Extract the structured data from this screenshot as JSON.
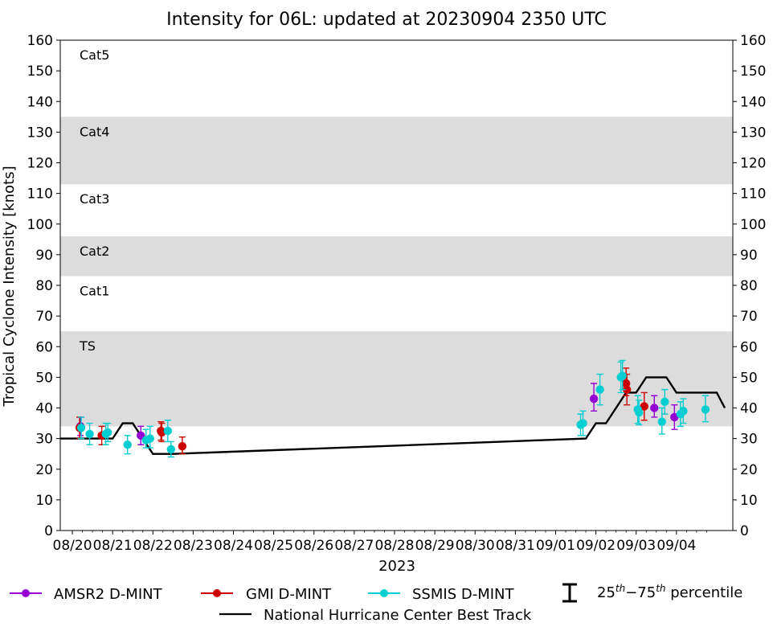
{
  "chart_data": {
    "type": "scatter",
    "title": "Intensity for 06L: updated at 20230904 2350 UTC",
    "xlabel": "2023",
    "ylabel": "Tropical Cyclone Intensity [knots]",
    "ylim": [
      0,
      160
    ],
    "yticks": [
      "0",
      "10",
      "20",
      "30",
      "40",
      "50",
      "60",
      "70",
      "80",
      "90",
      "100",
      "110",
      "120",
      "130",
      "140",
      "150",
      "160"
    ],
    "xticks": [
      "08/20",
      "08/21",
      "08/22",
      "08/23",
      "08/24",
      "08/25",
      "08/26",
      "08/27",
      "08/28",
      "08/29",
      "08/30",
      "08/31",
      "09/01",
      "09/02",
      "09/03",
      "09/04"
    ],
    "x_note_days_from_0820": [
      0,
      1,
      2,
      3,
      4,
      5,
      6,
      7,
      8,
      9,
      10,
      11,
      12,
      13,
      14,
      15
    ],
    "xlim_days": [
      -0.3,
      16.4
    ],
    "category_bands": [
      {
        "label": "Cat5",
        "from": 135,
        "to": 160,
        "shaded": false
      },
      {
        "label": "Cat4",
        "from": 113,
        "to": 135,
        "shaded": true
      },
      {
        "label": "Cat3",
        "from": 96,
        "to": 113,
        "shaded": false
      },
      {
        "label": "Cat2",
        "from": 83,
        "to": 96,
        "shaded": true
      },
      {
        "label": "Cat1",
        "from": 64,
        "to": 83,
        "shaded": false
      },
      {
        "label": "TS",
        "from": 34,
        "to": 65,
        "shaded": true
      }
    ],
    "colors": {
      "amsr2": "#9400d3",
      "gmi": "#cc0000",
      "ssmis": "#00ced1",
      "best_track": "#000000",
      "band": "#dcdcdc"
    },
    "series": [
      {
        "name": "AMSR2 D-MINT",
        "color": "#9400d3",
        "points": [
          {
            "x": "08/20 06",
            "y": 34,
            "lo": 31,
            "hi": 37
          },
          {
            "x": "08/21 18",
            "y": 31,
            "lo": 28,
            "hi": 34
          },
          {
            "x": "09/02 18",
            "y": 43,
            "lo": 39,
            "hi": 48
          },
          {
            "x": "09/03 06",
            "y": 40,
            "lo": 37,
            "hi": 44
          },
          {
            "x": "09/03 18",
            "y": 37,
            "lo": 33,
            "hi": 41
          }
        ]
      },
      {
        "name": "GMI D-MINT",
        "color": "#cc0000",
        "points": [
          {
            "x": "08/20 03",
            "y": 33.5,
            "lo": 30,
            "hi": 37
          },
          {
            "x": "08/20 18",
            "y": 31,
            "lo": 28,
            "hi": 34
          },
          {
            "x": "08/22 06",
            "y": 32.5,
            "lo": 29.5,
            "hi": 35.5
          },
          {
            "x": "08/22 06",
            "y": 32,
            "lo": 29,
            "hi": 35
          },
          {
            "x": "08/22 18",
            "y": 27.5,
            "lo": 25,
            "hi": 30.5
          },
          {
            "x": "09/02 12",
            "y": 48,
            "lo": 44,
            "hi": 53
          },
          {
            "x": "09/02 12",
            "y": 46,
            "lo": 41,
            "hi": 51
          },
          {
            "x": "09/03 00",
            "y": 40.5,
            "lo": 36,
            "hi": 45
          }
        ]
      },
      {
        "name": "SSMIS D-MINT",
        "color": "#00ced1",
        "points": [
          {
            "x": "08/20 06",
            "y": 33.5,
            "lo": 30,
            "hi": 37
          },
          {
            "x": "08/20 12",
            "y": 31.5,
            "lo": 28,
            "hi": 35
          },
          {
            "x": "08/21 00",
            "y": 31.5,
            "lo": 28,
            "hi": 35
          },
          {
            "x": "08/21 00",
            "y": 32,
            "lo": 29,
            "hi": 35
          },
          {
            "x": "08/21 12",
            "y": 28,
            "lo": 25,
            "hi": 31
          },
          {
            "x": "08/21 18",
            "y": 29.5,
            "lo": 27,
            "hi": 33
          },
          {
            "x": "08/22 00",
            "y": 30,
            "lo": 27,
            "hi": 34
          },
          {
            "x": "08/22 06",
            "y": 32.5,
            "lo": 29,
            "hi": 36
          },
          {
            "x": "08/22 12",
            "y": 26.5,
            "lo": 24,
            "hi": 29
          },
          {
            "x": "09/01 06",
            "y": 34.5,
            "lo": 31,
            "hi": 38
          },
          {
            "x": "09/01 06",
            "y": 35,
            "lo": 31,
            "hi": 39
          },
          {
            "x": "09/02 00",
            "y": 46,
            "lo": 41,
            "hi": 51
          },
          {
            "x": "09/02 06",
            "y": 50,
            "lo": 45,
            "hi": 55
          },
          {
            "x": "09/02 06",
            "y": 50.5,
            "lo": 46,
            "hi": 55.5
          },
          {
            "x": "09/02 18",
            "y": 39.5,
            "lo": 35,
            "hi": 44
          },
          {
            "x": "09/02 18",
            "y": 38.5,
            "lo": 34.5,
            "hi": 42.5
          },
          {
            "x": "09/03 06",
            "y": 35.5,
            "lo": 31.5,
            "hi": 40
          },
          {
            "x": "09/03 06",
            "y": 42,
            "lo": 38,
            "hi": 46
          },
          {
            "x": "09/03 18",
            "y": 38,
            "lo": 34,
            "hi": 42
          },
          {
            "x": "09/03 18",
            "y": 39,
            "lo": 35,
            "hi": 43
          },
          {
            "x": "09/04 06",
            "y": 39.5,
            "lo": 35.5,
            "hi": 44
          }
        ]
      }
    ],
    "series_days": {
      "AMSR2 D-MINT": [
        0.2,
        1.7,
        12.95,
        14.45,
        14.95
      ],
      "GMI D-MINT": [
        0.18,
        0.73,
        2.2,
        2.22,
        2.73,
        13.75,
        13.77,
        14.2
      ],
      "SSMIS D-MINT": [
        0.22,
        0.43,
        0.83,
        0.88,
        1.37,
        1.83,
        1.93,
        2.37,
        2.45,
        12.62,
        12.68,
        13.1,
        13.62,
        13.66,
        14.04,
        14.07,
        14.64,
        14.71,
        15.1,
        15.17,
        15.72
      ]
    },
    "best_track": {
      "name": "National Hurricane Center Best Track",
      "days": [
        -0.3,
        1.0,
        1.25,
        1.5,
        1.75,
        2.0,
        2.5,
        12.75,
        13.0,
        13.25,
        13.5,
        13.75,
        14.0,
        14.25,
        14.5,
        14.75,
        15.0,
        15.25,
        15.5,
        15.75,
        16.0,
        16.2
      ],
      "values": [
        30,
        30,
        35,
        35,
        30,
        25,
        25,
        30,
        35,
        35,
        40,
        45,
        45,
        50,
        50,
        50,
        45,
        45,
        45,
        45,
        45,
        40
      ]
    },
    "legend": {
      "placement": "bottom",
      "items": [
        "AMSR2 D-MINT",
        "GMI D-MINT",
        "SSMIS D-MINT",
        "25th−75th percentile",
        "National Hurricane Center Best Track"
      ],
      "percentile_base": "25",
      "percentile_mid": "−75",
      "percentile_sup": "th",
      "percentile_tail": " percentile"
    }
  }
}
